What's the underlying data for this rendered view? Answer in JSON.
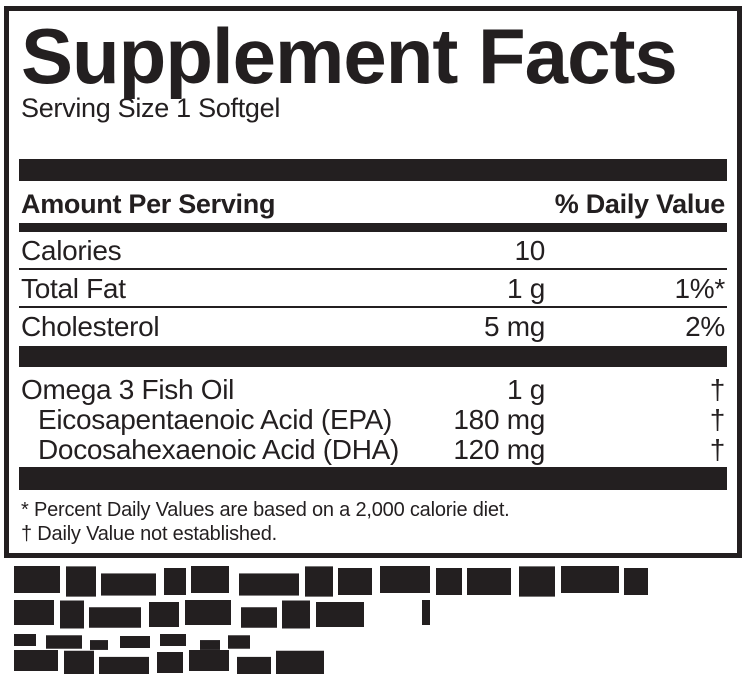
{
  "label": {
    "title": "Supplement Facts",
    "serving_size": "Serving Size 1 Softgel",
    "header": {
      "left": "Amount Per Serving",
      "right": "% Daily Value"
    },
    "rows": [
      {
        "name": "Calories",
        "amount": "10",
        "dv": ""
      },
      {
        "name": "Total Fat",
        "amount": "1 g",
        "dv": "1%*"
      },
      {
        "name": "Cholesterol",
        "amount": "5 mg",
        "dv": "2%"
      },
      {
        "name": "Omega 3 Fish Oil",
        "amount": "1 g",
        "dv": "†"
      },
      {
        "name": "Eicosapentaenoic Acid (EPA)",
        "amount": "180 mg",
        "dv": "†"
      },
      {
        "name": "Docosahexaenoic Acid (DHA)",
        "amount": "120 mg",
        "dv": "†"
      }
    ],
    "footnotes": [
      "* Percent Daily Values are based on a 2,000 calorie diet.",
      "† Daily Value not established."
    ],
    "ink_color": "#231f20"
  },
  "illegible_text": {
    "note": "degraded, unreadable small print below the panel (4 lines)",
    "lines": [
      {
        "h": 27,
        "mt": 0,
        "segments": [
          [
            46,
            6
          ],
          [
            30,
            5
          ],
          [
            55,
            8
          ],
          [
            22,
            5
          ],
          [
            38,
            10
          ],
          [
            60,
            6
          ],
          [
            28,
            5
          ],
          [
            34,
            8
          ],
          [
            50,
            6
          ],
          [
            26,
            5
          ],
          [
            44,
            8
          ],
          [
            36,
            6
          ],
          [
            58,
            5
          ],
          [
            24,
            0
          ]
        ]
      },
      {
        "h": 25,
        "mt": 7,
        "segments": [
          [
            40,
            6
          ],
          [
            24,
            5
          ],
          [
            52,
            8
          ],
          [
            30,
            6
          ],
          [
            46,
            10
          ],
          [
            36,
            5
          ],
          [
            28,
            6
          ],
          [
            48,
            58
          ],
          [
            8,
            0
          ]
        ]
      },
      {
        "h": 12,
        "mt": 9,
        "segments": [
          [
            22,
            10
          ],
          [
            36,
            8
          ],
          [
            18,
            12
          ],
          [
            30,
            10
          ],
          [
            26,
            14
          ],
          [
            20,
            8
          ],
          [
            22,
            0
          ]
        ]
      },
      {
        "h": 21,
        "mt": 4,
        "segments": [
          [
            44,
            6
          ],
          [
            30,
            5
          ],
          [
            50,
            8
          ],
          [
            26,
            6
          ],
          [
            40,
            8
          ],
          [
            34,
            5
          ],
          [
            48,
            0
          ]
        ]
      }
    ]
  }
}
